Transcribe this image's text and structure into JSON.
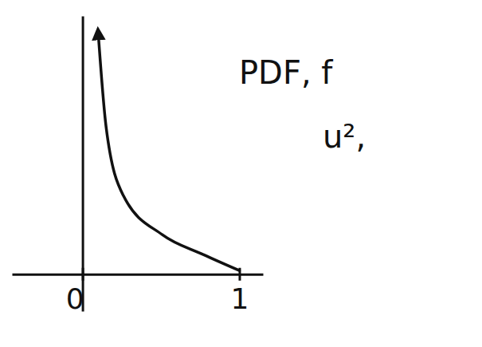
{
  "chart_data": {
    "type": "line",
    "x": [
      0.1,
      0.15,
      0.26,
      0.51,
      0.77,
      1.0
    ],
    "values": [
      9.8,
      6.0,
      3.2,
      1.6,
      0.8,
      0.15
    ],
    "color": "#111111",
    "xlim": [
      -0.45,
      1.15
    ],
    "xticks": [
      0,
      1
    ],
    "ylim": [
      -1.5,
      10.5
    ],
    "yticks": [],
    "annotations": [
      "PDF, f",
      "u²,"
    ],
    "grid": false
  }
}
